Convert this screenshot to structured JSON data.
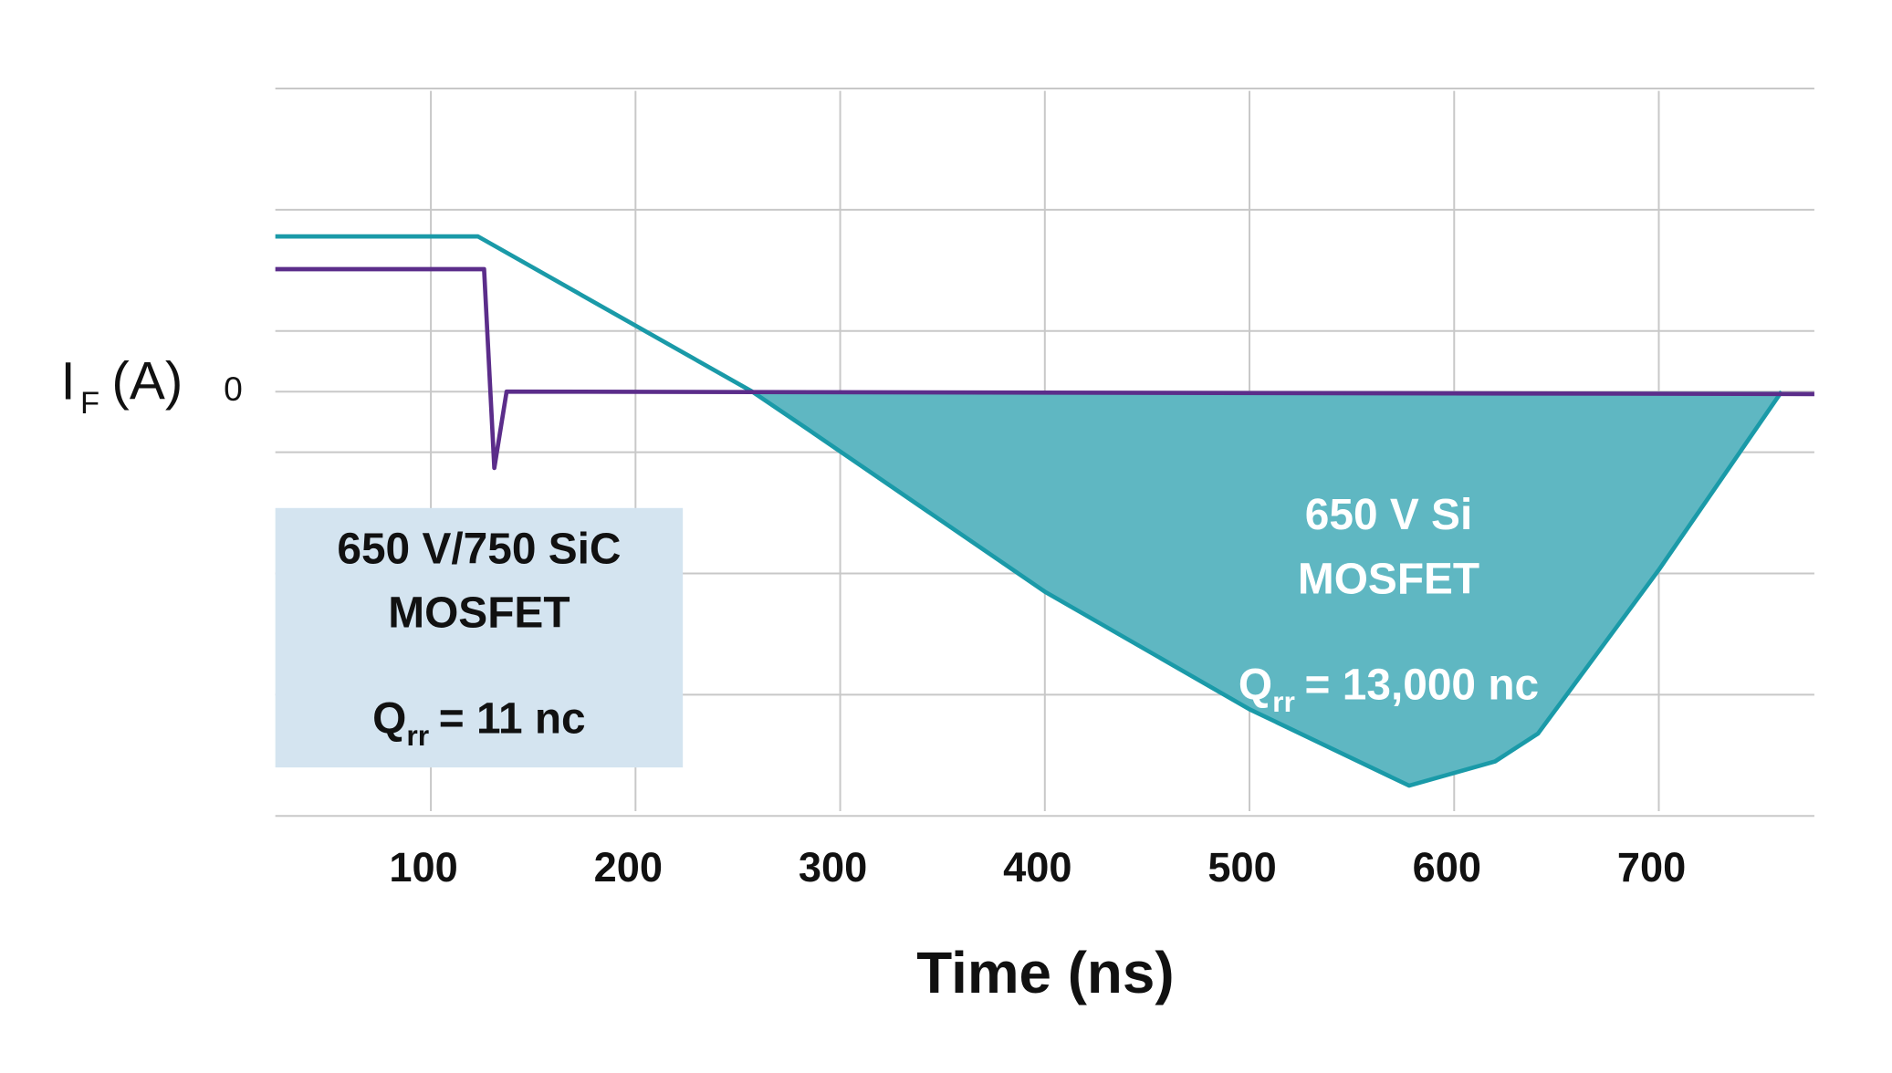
{
  "chart_data": {
    "type": "line",
    "xlabel": "Time (ns)",
    "ylabel": {
      "main": "I",
      "sub": "F",
      "unit": "(A)"
    },
    "xlim": [
      24,
      776
    ],
    "xticks": [
      100,
      200,
      300,
      400,
      500,
      600,
      700
    ],
    "ylim": [
      -3.5,
      2.5
    ],
    "yticks": [
      0
    ],
    "ygrid": [
      2.5,
      1.5,
      0.5,
      -0.5,
      -1.5,
      -2.5,
      -3.5
    ],
    "grid": true,
    "series": [
      {
        "color": "#1a9aa8",
        "fill": "#5fb7c2",
        "x": [
          24,
          123,
          257,
          285,
          400,
          500,
          578,
          620,
          641,
          700,
          760
        ],
        "values": [
          1.28,
          1.28,
          0,
          -0.32,
          -1.65,
          -2.62,
          -3.25,
          -3.05,
          -2.82,
          -1.47,
          0
        ]
      },
      {
        "color": "#5b2d8a",
        "x": [
          24,
          126,
          131,
          137,
          776
        ],
        "values": [
          1.01,
          1.01,
          -0.63,
          0,
          -0.02
        ]
      }
    ],
    "annotations": [
      {
        "lines": [
          "650 V/750 SiC",
          "MOSFET"
        ],
        "qrr": {
          "symbol": "Q",
          "sub": "rr",
          "text": "= 11 nc"
        },
        "box_color": "#d4e4f0",
        "text_color": "#111111"
      },
      {
        "lines": [
          "650 V Si",
          "MOSFET"
        ],
        "qrr": {
          "symbol": "Q",
          "sub": "rr",
          "text": "= 13,000 nc"
        },
        "text_color": "#ffffff"
      }
    ]
  }
}
